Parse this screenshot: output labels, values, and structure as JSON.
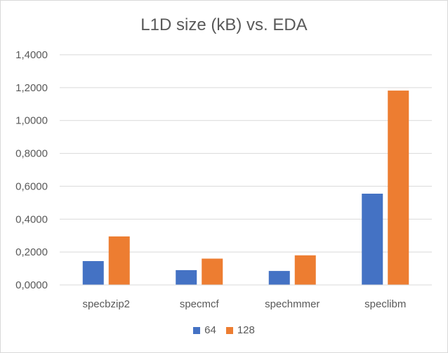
{
  "chart_data": {
    "type": "bar",
    "title": "L1D size (kB) vs. EDA",
    "xlabel": "",
    "ylabel": "",
    "categories": [
      "specbzip2",
      "specmcf",
      "spechmmer",
      "speclibm"
    ],
    "series": [
      {
        "name": "64",
        "color": "#4472c4",
        "values": [
          0.145,
          0.09,
          0.085,
          0.555
        ]
      },
      {
        "name": "128",
        "color": "#ed7d31",
        "values": [
          0.295,
          0.16,
          0.18,
          1.182
        ]
      }
    ],
    "ylim": [
      0,
      1.4
    ],
    "yticks": [
      "0,0000",
      "0,2000",
      "0,4000",
      "0,6000",
      "0,8000",
      "1,0000",
      "1,2000",
      "1,4000"
    ],
    "grid": true,
    "legend_position": "bottom"
  }
}
